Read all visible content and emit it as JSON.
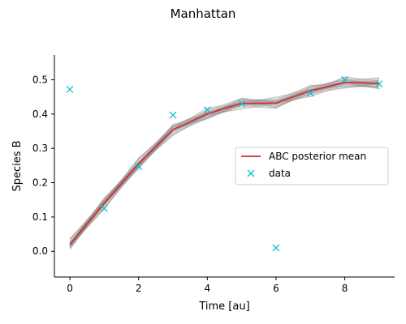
{
  "chart_data": {
    "type": "line",
    "title": "Manhattan",
    "xlabel": "Time [au]",
    "ylabel": "Species B",
    "xlim": [
      -0.45,
      9.45
    ],
    "ylim": [
      -0.075,
      0.572
    ],
    "xticks": [
      0,
      2,
      4,
      6,
      8
    ],
    "xtick_labels": [
      "0",
      "2",
      "4",
      "6",
      "8"
    ],
    "yticks": [
      0.0,
      0.1,
      0.2,
      0.3,
      0.4,
      0.5
    ],
    "ytick_labels": [
      "0.0",
      "0.1",
      "0.2",
      "0.3",
      "0.4",
      "0.5"
    ],
    "grid": false,
    "legend": {
      "placement": "center-right",
      "entries": [
        "ABC posterior mean",
        "data"
      ]
    },
    "series": [
      {
        "name": "ABC posterior mean",
        "kind": "line",
        "color": "#d62728",
        "x": [
          0,
          1,
          2,
          3,
          4,
          5,
          6,
          7,
          8,
          9
        ],
        "y": [
          0.02,
          0.14,
          0.255,
          0.355,
          0.4,
          0.432,
          0.432,
          0.468,
          0.492,
          0.489
        ]
      },
      {
        "name": "data",
        "kind": "scatter",
        "marker": "x",
        "color": "#17becf",
        "x": [
          0,
          1,
          2,
          3,
          4,
          5,
          6,
          7,
          8,
          9
        ],
        "y": [
          0.472,
          0.125,
          0.247,
          0.397,
          0.412,
          0.431,
          0.01,
          0.461,
          0.5,
          0.488
        ]
      }
    ],
    "posterior_band_color": "#808080"
  }
}
